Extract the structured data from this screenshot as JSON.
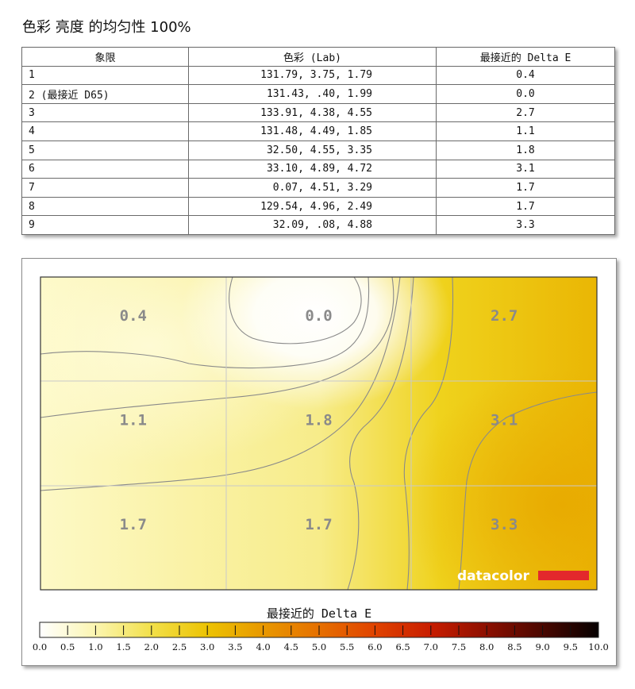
{
  "title": "色彩 亮度 的均匀性 100%",
  "table": {
    "headers": [
      "象限",
      "色彩 (Lab)",
      "最接近的 Delta E"
    ],
    "rows": [
      {
        "quadrant": "1",
        "lab": "131.79,     3.75,     1.79",
        "de": "0.4"
      },
      {
        "quadrant": "2 (最接近 D65)",
        "lab": "131.43,      .40,     1.99",
        "de": "0.0"
      },
      {
        "quadrant": "3",
        "lab": "133.91,     4.38,     4.55",
        "de": "2.7"
      },
      {
        "quadrant": "4",
        "lab": "131.48,     4.49,     1.85",
        "de": "1.1"
      },
      {
        "quadrant": "5",
        "lab": "32.50,     4.55,     3.35",
        "de": "1.8"
      },
      {
        "quadrant": "6",
        "lab": "33.10,     4.89,     4.72",
        "de": "3.1"
      },
      {
        "quadrant": "7",
        "lab": "0.07,     4.51,     3.29",
        "de": "1.7"
      },
      {
        "quadrant": "8",
        "lab": "129.54,     4.96,     2.49",
        "de": "1.7"
      },
      {
        "quadrant": "9",
        "lab": "32.09,      .08,     4.88",
        "de": "3.3"
      }
    ]
  },
  "chart_data": {
    "type": "heatmap",
    "grid": "3x3",
    "values": [
      [
        0.4,
        0.0,
        2.7
      ],
      [
        1.1,
        1.8,
        3.1
      ],
      [
        1.7,
        1.7,
        3.3
      ]
    ],
    "legend_title": "最接近的 Delta E",
    "colorbar_ticks": [
      "0.0",
      "0.5",
      "1.0",
      "1.5",
      "2.0",
      "2.5",
      "3.0",
      "3.5",
      "4.0",
      "4.5",
      "5.0",
      "5.5",
      "6.0",
      "6.5",
      "7.0",
      "7.5",
      "8.0",
      "8.5",
      "9.0",
      "9.5",
      "10.0"
    ],
    "colorbar_range": [
      0,
      10
    ],
    "colorbar_stops": [
      {
        "value": 0.0,
        "color": "#ffffff"
      },
      {
        "value": 1.0,
        "color": "#fbf5b0"
      },
      {
        "value": 2.0,
        "color": "#f2e04a"
      },
      {
        "value": 3.0,
        "color": "#ecc303"
      },
      {
        "value": 4.0,
        "color": "#e89800"
      },
      {
        "value": 5.0,
        "color": "#e67000"
      },
      {
        "value": 6.0,
        "color": "#e04300"
      },
      {
        "value": 7.0,
        "color": "#c81d00"
      },
      {
        "value": 8.0,
        "color": "#8c0f00"
      },
      {
        "value": 9.0,
        "color": "#4a0700"
      },
      {
        "value": 10.0,
        "color": "#050000"
      }
    ],
    "brand": "datacolor",
    "brand_color": "#e3282c"
  }
}
